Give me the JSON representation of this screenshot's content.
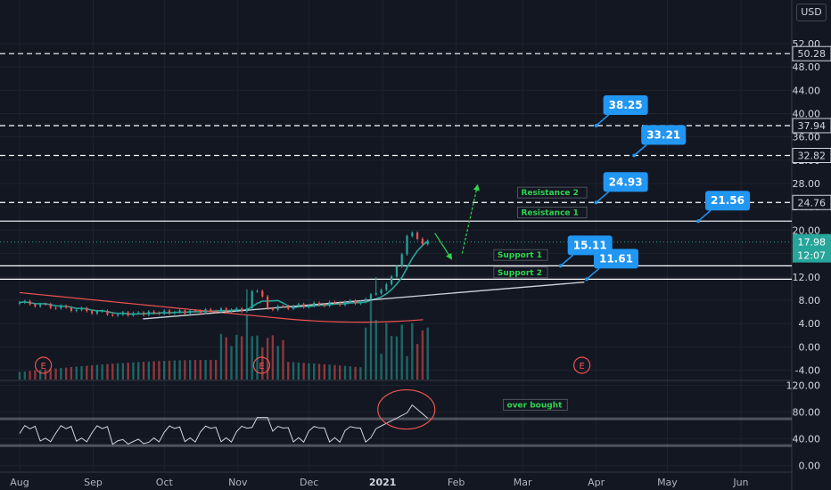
{
  "currency_button": "USD",
  "chart_data": {
    "type": "candlestick",
    "price_axis": {
      "ticks": [
        52.0,
        48.0,
        44.0,
        40.0,
        36.0,
        32.0,
        28.0,
        24.0,
        20.0,
        16.0,
        12.0,
        8.0,
        4.0,
        0.0,
        -4.0
      ],
      "range": [
        -5.6,
        55.2
      ]
    },
    "rsi_axis": {
      "ticks": [
        120.0,
        80.0,
        40.0,
        0.0
      ],
      "range": [
        -7,
        126
      ]
    },
    "x_axis": {
      "labels": [
        {
          "label": "Aug",
          "day": 0
        },
        {
          "label": "Sep",
          "day": 31
        },
        {
          "label": "Oct",
          "day": 61
        },
        {
          "label": "Nov",
          "day": 92
        },
        {
          "label": "Dec",
          "day": 122
        },
        {
          "label": "2021",
          "day": 153,
          "bold": true
        },
        {
          "label": "Feb",
          "day": 184
        },
        {
          "label": "Mar",
          "day": 212
        },
        {
          "label": "Apr",
          "day": 243
        },
        {
          "label": "May",
          "day": 273
        },
        {
          "label": "Jun",
          "day": 304
        }
      ]
    },
    "horizontal_levels": [
      {
        "value": 50.28,
        "style": "dashed",
        "axis_label": "50.28"
      },
      {
        "value": 37.94,
        "style": "dashed",
        "axis_label": "37.94"
      },
      {
        "value": 32.82,
        "style": "dashed",
        "axis_label": "32.82"
      },
      {
        "value": 24.76,
        "style": "dashed",
        "axis_label": "24.76"
      },
      {
        "value": 21.56,
        "style": "solid"
      },
      {
        "value": 13.9,
        "style": "solid"
      },
      {
        "value": 11.61,
        "style": "solid"
      }
    ],
    "current_price": {
      "value": 17.98,
      "countdown": "12:07",
      "color": "#26a69a"
    },
    "target_callouts": [
      {
        "label": "38.25",
        "day": 243,
        "value": 37.94
      },
      {
        "label": "33.21",
        "day": 259,
        "value": 32.82
      },
      {
        "label": "24.93",
        "day": 243,
        "value": 24.76
      },
      {
        "label": "21.56",
        "day": 286,
        "value": 21.56
      },
      {
        "label": "15.11",
        "day": 228,
        "value": 13.9
      },
      {
        "label": "11.61",
        "day": 239,
        "value": 11.61
      }
    ],
    "level_labels": [
      {
        "text": "Resistance 2",
        "day": 211,
        "value": 26.0,
        "color": "#2fd44f"
      },
      {
        "text": "Resistance 1",
        "day": 211,
        "value": 22.6,
        "color": "#2fd44f"
      },
      {
        "text": "Support 1",
        "day": 201,
        "value": 15.3,
        "color": "#2fd44f"
      },
      {
        "text": "Support 2",
        "day": 201,
        "value": 12.3,
        "color": "#2fd44f"
      },
      {
        "text": "over bought",
        "day": 205,
        "value": 87,
        "pane": "rsi",
        "color": "#2fd44f"
      }
    ],
    "earnings_markers": [
      {
        "label": "E",
        "day": 10
      },
      {
        "label": "E",
        "day": 102
      },
      {
        "label": "E",
        "day": 237
      }
    ],
    "trendlines": [
      {
        "name": "support-trend",
        "color": "#d1d4dc",
        "points": [
          [
            52,
            4.8
          ],
          [
            238,
            11.1
          ]
        ]
      }
    ],
    "colors": {
      "up": "#26a69a",
      "down": "#ef5350",
      "ma_fast": "#26a69a",
      "ma_slow": "#ef5350",
      "callout": "#2196f3",
      "rsi": "#d1d4dc"
    }
  }
}
